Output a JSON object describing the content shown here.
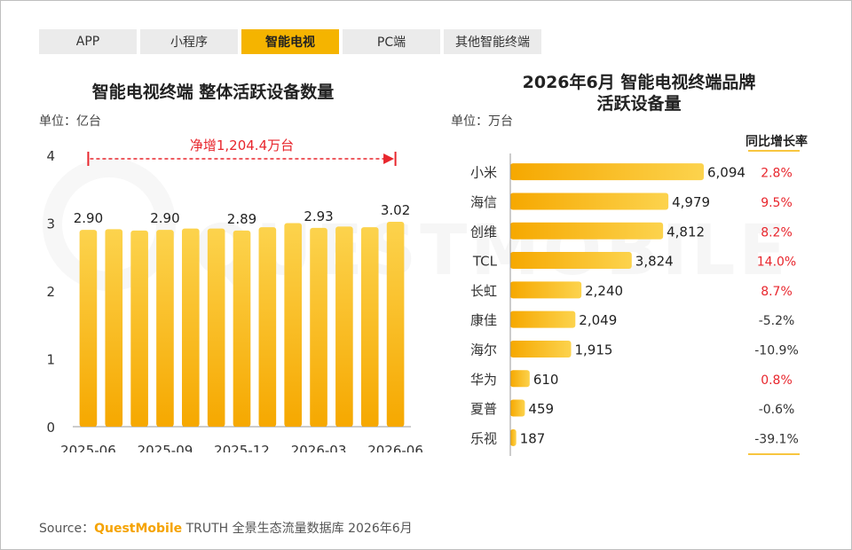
{
  "tabs": [
    {
      "label": "APP",
      "active": false
    },
    {
      "label": "小程序",
      "active": false
    },
    {
      "label": "智能电视",
      "active": true
    },
    {
      "label": "PC端",
      "active": false
    },
    {
      "label": "其他智能终端",
      "active": false
    }
  ],
  "watermark": "QUESTMOBILE",
  "colors": {
    "accent": "#f5b400",
    "bar_top": "#fcd34d",
    "bar_bottom": "#f6a800",
    "red": "#e8262d",
    "annotation": "#e8262d"
  },
  "left": {
    "title": "智能电视终端 整体活跃设备数量",
    "unit": "单位：亿台",
    "annotation": "净增1,204.4万台"
  },
  "right": {
    "title_line1": "2026年6月 智能电视终端品牌",
    "title_line2": "活跃设备量",
    "unit": "单位：万台",
    "growth_header": "同比增长率"
  },
  "source": {
    "prefix": "Source：",
    "brand": "QuestMobile",
    "suffix": " TRUTH 全景生态流量数据库 2026年6月"
  },
  "chart_data": [
    {
      "type": "bar",
      "title": "智能电视终端 整体活跃设备数量",
      "unit": "亿台",
      "categories": [
        "2025-06",
        "2025-07",
        "2025-08",
        "2025-09",
        "2025-10",
        "2025-11",
        "2025-12",
        "2026-01",
        "2026-02",
        "2026-03",
        "2026-04",
        "2026-05",
        "2026-06"
      ],
      "x_tick_labels": [
        "2025-06",
        "2025-09",
        "2025-12",
        "2026-03",
        "2026-06"
      ],
      "values": [
        2.9,
        2.91,
        2.89,
        2.9,
        2.92,
        2.92,
        2.89,
        2.94,
        3.0,
        2.93,
        2.95,
        2.94,
        3.02
      ],
      "data_labels": {
        "2025-06": "2.90",
        "2025-09": "2.90",
        "2025-12": "2.89",
        "2026-03": "2.93",
        "2026-06": "3.02"
      },
      "yticks": [
        0,
        1,
        2,
        3,
        4
      ],
      "ylim": [
        0,
        4
      ],
      "annotation": "净增1,204.4万台"
    },
    {
      "type": "bar",
      "orientation": "horizontal",
      "title": "2026年6月 智能电视终端品牌活跃设备量",
      "unit": "万台",
      "categories": [
        "小米",
        "海信",
        "创维",
        "TCL",
        "长虹",
        "康佳",
        "海尔",
        "华为",
        "夏普",
        "乐视"
      ],
      "values": [
        6094,
        4979,
        4812,
        3824,
        2240,
        2049,
        1915,
        610,
        459,
        187
      ],
      "value_labels": [
        "6,094",
        "4,979",
        "4,812",
        "3,824",
        "2,240",
        "2,049",
        "1,915",
        "610",
        "459",
        "187"
      ],
      "growth_header": "同比增长率",
      "growth": [
        "2.8%",
        "9.5%",
        "8.2%",
        "14.0%",
        "8.7%",
        "-5.2%",
        "-10.9%",
        "0.8%",
        "-0.6%",
        "-39.1%"
      ],
      "growth_positive": [
        true,
        true,
        true,
        true,
        true,
        false,
        false,
        true,
        false,
        false
      ]
    }
  ]
}
